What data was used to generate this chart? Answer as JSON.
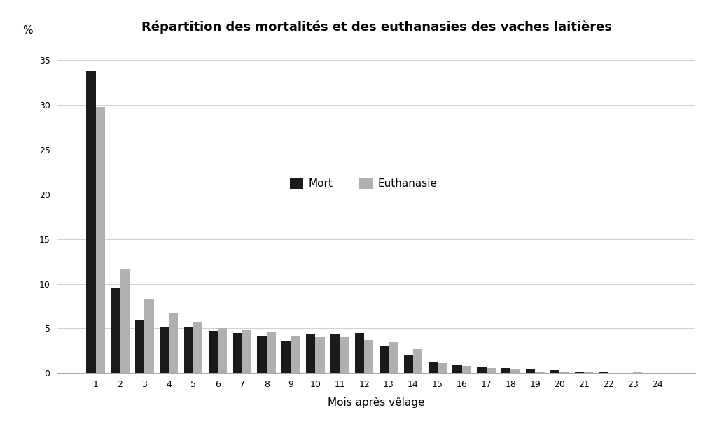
{
  "title": "Répartition des mortalités et des euthanasies des vaches laitières",
  "xlabel": "Mois après vêlage",
  "ylabel": "%",
  "categories": [
    1,
    2,
    3,
    4,
    5,
    6,
    7,
    8,
    9,
    10,
    11,
    12,
    13,
    14,
    15,
    16,
    17,
    18,
    19,
    20,
    21,
    22,
    23,
    24
  ],
  "mort": [
    33.8,
    9.5,
    6.0,
    5.2,
    5.2,
    4.7,
    4.5,
    4.2,
    3.6,
    4.3,
    4.4,
    4.5,
    3.1,
    2.0,
    1.3,
    0.9,
    0.7,
    0.6,
    0.4,
    0.3,
    0.2,
    0.1,
    0.05,
    0.05
  ],
  "euthanasie": [
    29.8,
    11.6,
    8.3,
    6.7,
    5.7,
    5.0,
    4.9,
    4.6,
    4.2,
    4.1,
    4.0,
    3.7,
    3.5,
    2.7,
    1.1,
    0.8,
    0.6,
    0.5,
    0.2,
    0.15,
    0.1,
    0.05,
    0.1,
    0.05
  ],
  "mort_color": "#1a1a1a",
  "euthanasie_color": "#b0b0b0",
  "ylim": [
    0,
    37
  ],
  "yticks": [
    0,
    5,
    10,
    15,
    20,
    25,
    30,
    35
  ],
  "legend_labels": [
    "Mort",
    "Euthanasie"
  ],
  "background_color": "#ffffff",
  "grid_color": "#d0d0d0",
  "bar_width": 0.38
}
